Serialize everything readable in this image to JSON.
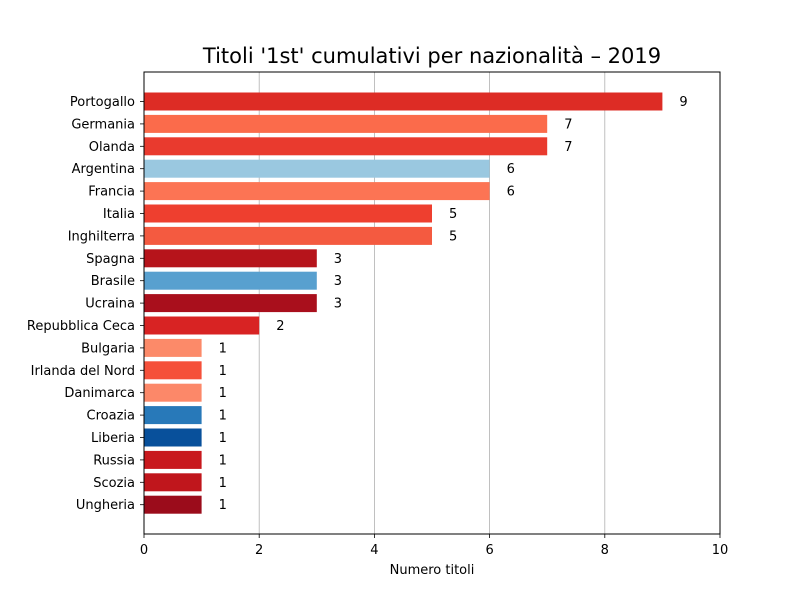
{
  "chart_data": {
    "type": "bar",
    "orientation": "horizontal",
    "title": "Titoli '1st' cumulativi per nazionalità – 2019",
    "xlabel": "Numero titoli",
    "ylabel": "",
    "xlim": [
      0,
      10
    ],
    "xticks": [
      0,
      2,
      4,
      6,
      8,
      10
    ],
    "grid": "vertical",
    "legend": "none",
    "categories": [
      "Portogallo",
      "Germania",
      "Olanda",
      "Argentina",
      "Francia",
      "Italia",
      "Inghilterra",
      "Spagna",
      "Brasile",
      "Ucraina",
      "Repubblica Ceca",
      "Bulgaria",
      "Irlanda del Nord",
      "Danimarca",
      "Croazia",
      "Liberia",
      "Russia",
      "Scozia",
      "Ungheria"
    ],
    "values": [
      9,
      7,
      7,
      6,
      6,
      5,
      5,
      3,
      3,
      3,
      2,
      1,
      1,
      1,
      1,
      1,
      1,
      1,
      1
    ],
    "colors": [
      "#dd2c25",
      "#fb6b4b",
      "#e93a2e",
      "#9ac8e0",
      "#fc7454",
      "#ee3f2f",
      "#f45a40",
      "#b6141b",
      "#58a0cf",
      "#a90f1c",
      "#d82323",
      "#fc8a69",
      "#f5503a",
      "#fc8869",
      "#2879b9",
      "#08509b",
      "#c8181d",
      "#c0161c",
      "#9b0c1b"
    ]
  }
}
